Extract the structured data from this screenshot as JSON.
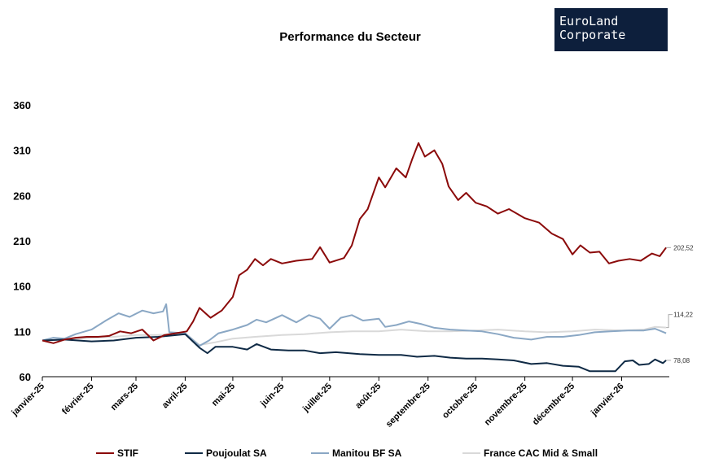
{
  "logo": {
    "line1": "EuroLand",
    "line2": "Corporate",
    "bg": "#0d1f3c"
  },
  "chart_data": {
    "type": "line",
    "title": "Performance du Secteur",
    "ylim": [
      60,
      360
    ],
    "yticks": [
      60,
      110,
      160,
      210,
      260,
      310,
      360
    ],
    "xlim": [
      "2025-01-01",
      "2026-01-31"
    ],
    "xticks": [
      {
        "date": "2025-01-01",
        "label": "janvier-25"
      },
      {
        "date": "2025-02-01",
        "label": "février-25"
      },
      {
        "date": "2025-03-01",
        "label": "mars-25"
      },
      {
        "date": "2025-04-01",
        "label": "avril-25"
      },
      {
        "date": "2025-05-01",
        "label": "mai-25"
      },
      {
        "date": "2025-06-01",
        "label": "juin-25"
      },
      {
        "date": "2025-07-01",
        "label": "juillet-25"
      },
      {
        "date": "2025-08-01",
        "label": "août-25"
      },
      {
        "date": "2025-09-01",
        "label": "septembre-25"
      },
      {
        "date": "2025-10-01",
        "label": "octobre-25"
      },
      {
        "date": "2025-11-01",
        "label": "novembre-25"
      },
      {
        "date": "2025-12-01",
        "label": "décembre-25"
      },
      {
        "date": "2026-01-01",
        "label": "janvier-26"
      }
    ],
    "legend_position": "bottom",
    "series": [
      {
        "name": "STIF",
        "color": "#8b0a0a",
        "end_label": "202,52",
        "points": [
          [
            "2025-01-01",
            100
          ],
          [
            "2025-01-08",
            97
          ],
          [
            "2025-01-15",
            101
          ],
          [
            "2025-01-22",
            103
          ],
          [
            "2025-01-29",
            104
          ],
          [
            "2025-02-05",
            104
          ],
          [
            "2025-02-12",
            105
          ],
          [
            "2025-02-19",
            110
          ],
          [
            "2025-02-26",
            108
          ],
          [
            "2025-03-05",
            112
          ],
          [
            "2025-03-12",
            100
          ],
          [
            "2025-03-19",
            106
          ],
          [
            "2025-03-26",
            108
          ],
          [
            "2025-04-02",
            110
          ],
          [
            "2025-04-06",
            121
          ],
          [
            "2025-04-10",
            136
          ],
          [
            "2025-04-17",
            125
          ],
          [
            "2025-04-24",
            133
          ],
          [
            "2025-05-01",
            148
          ],
          [
            "2025-05-05",
            172
          ],
          [
            "2025-05-10",
            178
          ],
          [
            "2025-05-15",
            190
          ],
          [
            "2025-05-20",
            183
          ],
          [
            "2025-05-25",
            190
          ],
          [
            "2025-06-01",
            185
          ],
          [
            "2025-06-10",
            188
          ],
          [
            "2025-06-20",
            190
          ],
          [
            "2025-06-25",
            203
          ],
          [
            "2025-07-01",
            186
          ],
          [
            "2025-07-10",
            191
          ],
          [
            "2025-07-15",
            205
          ],
          [
            "2025-07-20",
            234
          ],
          [
            "2025-07-25",
            245
          ],
          [
            "2025-08-01",
            280
          ],
          [
            "2025-08-05",
            269
          ],
          [
            "2025-08-12",
            290
          ],
          [
            "2025-08-18",
            280
          ],
          [
            "2025-08-22",
            300
          ],
          [
            "2025-08-26",
            318
          ],
          [
            "2025-08-30",
            303
          ],
          [
            "2025-09-05",
            310
          ],
          [
            "2025-09-10",
            295
          ],
          [
            "2025-09-14",
            270
          ],
          [
            "2025-09-20",
            255
          ],
          [
            "2025-09-25",
            263
          ],
          [
            "2025-10-01",
            252
          ],
          [
            "2025-10-08",
            248
          ],
          [
            "2025-10-15",
            240
          ],
          [
            "2025-10-22",
            245
          ],
          [
            "2025-11-01",
            235
          ],
          [
            "2025-11-10",
            230
          ],
          [
            "2025-11-18",
            218
          ],
          [
            "2025-11-25",
            212
          ],
          [
            "2025-12-01",
            195
          ],
          [
            "2025-12-06",
            205
          ],
          [
            "2025-12-12",
            197
          ],
          [
            "2025-12-18",
            198
          ],
          [
            "2025-12-24",
            185
          ],
          [
            "2025-12-30",
            188
          ],
          [
            "2026-01-06",
            190
          ],
          [
            "2026-01-13",
            188
          ],
          [
            "2026-01-20",
            196
          ],
          [
            "2026-01-25",
            193
          ],
          [
            "2026-01-29",
            202.52
          ]
        ]
      },
      {
        "name": "Poujoulat SA",
        "color": "#0f2a45",
        "end_label": "78,08",
        "points": [
          [
            "2025-01-01",
            100
          ],
          [
            "2025-01-15",
            101
          ],
          [
            "2025-02-01",
            99
          ],
          [
            "2025-02-15",
            100
          ],
          [
            "2025-03-01",
            103
          ],
          [
            "2025-03-15",
            104
          ],
          [
            "2025-04-01",
            107
          ],
          [
            "2025-04-10",
            92
          ],
          [
            "2025-04-15",
            86
          ],
          [
            "2025-04-20",
            93
          ],
          [
            "2025-05-01",
            93
          ],
          [
            "2025-05-10",
            90
          ],
          [
            "2025-05-16",
            96
          ],
          [
            "2025-05-25",
            90
          ],
          [
            "2025-06-05",
            89
          ],
          [
            "2025-06-15",
            89
          ],
          [
            "2025-06-25",
            86
          ],
          [
            "2025-07-05",
            87
          ],
          [
            "2025-07-20",
            85
          ],
          [
            "2025-08-01",
            84
          ],
          [
            "2025-08-15",
            84
          ],
          [
            "2025-08-25",
            82
          ],
          [
            "2025-09-05",
            83
          ],
          [
            "2025-09-15",
            81
          ],
          [
            "2025-09-25",
            80
          ],
          [
            "2025-10-05",
            80
          ],
          [
            "2025-10-15",
            79
          ],
          [
            "2025-10-25",
            78
          ],
          [
            "2025-11-05",
            74
          ],
          [
            "2025-11-15",
            75
          ],
          [
            "2025-11-25",
            72
          ],
          [
            "2025-12-05",
            71
          ],
          [
            "2025-12-12",
            66
          ],
          [
            "2025-12-20",
            66
          ],
          [
            "2025-12-28",
            66
          ],
          [
            "2026-01-03",
            77
          ],
          [
            "2026-01-08",
            78
          ],
          [
            "2026-01-12",
            73
          ],
          [
            "2026-01-18",
            74
          ],
          [
            "2026-01-22",
            79
          ],
          [
            "2026-01-27",
            75
          ],
          [
            "2026-01-29",
            78.08
          ]
        ]
      },
      {
        "name": "Manitou BF SA",
        "color": "#8aa7c4",
        "end_label": "",
        "points": [
          [
            "2025-01-01",
            100
          ],
          [
            "2025-01-08",
            103
          ],
          [
            "2025-01-15",
            102
          ],
          [
            "2025-01-22",
            107
          ],
          [
            "2025-02-01",
            112
          ],
          [
            "2025-02-10",
            122
          ],
          [
            "2025-02-18",
            130
          ],
          [
            "2025-02-25",
            126
          ],
          [
            "2025-03-05",
            133
          ],
          [
            "2025-03-12",
            130
          ],
          [
            "2025-03-18",
            132
          ],
          [
            "2025-03-20",
            140
          ],
          [
            "2025-03-22",
            109
          ],
          [
            "2025-04-01",
            108
          ],
          [
            "2025-04-10",
            94
          ],
          [
            "2025-04-16",
            100
          ],
          [
            "2025-04-22",
            108
          ],
          [
            "2025-05-01",
            112
          ],
          [
            "2025-05-10",
            117
          ],
          [
            "2025-05-16",
            123
          ],
          [
            "2025-05-22",
            120
          ],
          [
            "2025-06-01",
            128
          ],
          [
            "2025-06-10",
            120
          ],
          [
            "2025-06-18",
            128
          ],
          [
            "2025-06-25",
            124
          ],
          [
            "2025-07-01",
            113
          ],
          [
            "2025-07-08",
            125
          ],
          [
            "2025-07-15",
            128
          ],
          [
            "2025-07-22",
            122
          ],
          [
            "2025-08-01",
            124
          ],
          [
            "2025-08-05",
            115
          ],
          [
            "2025-08-12",
            117
          ],
          [
            "2025-08-20",
            121
          ],
          [
            "2025-08-28",
            118
          ],
          [
            "2025-09-05",
            114
          ],
          [
            "2025-09-15",
            112
          ],
          [
            "2025-09-25",
            111
          ],
          [
            "2025-10-05",
            110
          ],
          [
            "2025-10-15",
            107
          ],
          [
            "2025-10-25",
            103
          ],
          [
            "2025-11-05",
            101
          ],
          [
            "2025-11-15",
            104
          ],
          [
            "2025-11-25",
            104
          ],
          [
            "2025-12-05",
            106
          ],
          [
            "2025-12-15",
            109
          ],
          [
            "2025-12-25",
            110
          ],
          [
            "2026-01-05",
            111
          ],
          [
            "2026-01-15",
            111
          ],
          [
            "2026-01-22",
            113
          ],
          [
            "2026-01-29",
            108
          ]
        ]
      },
      {
        "name": "France CAC Mid & Small",
        "color": "#d9d9d9",
        "end_label": "114,22",
        "points": [
          [
            "2025-01-01",
            100
          ],
          [
            "2025-01-15",
            101
          ],
          [
            "2025-02-01",
            103
          ],
          [
            "2025-02-15",
            104
          ],
          [
            "2025-03-01",
            106
          ],
          [
            "2025-03-15",
            106
          ],
          [
            "2025-04-01",
            108
          ],
          [
            "2025-04-10",
            95
          ],
          [
            "2025-04-20",
            98
          ],
          [
            "2025-05-01",
            102
          ],
          [
            "2025-05-15",
            104
          ],
          [
            "2025-06-01",
            106
          ],
          [
            "2025-06-15",
            107
          ],
          [
            "2025-07-01",
            109
          ],
          [
            "2025-07-15",
            110
          ],
          [
            "2025-08-01",
            110
          ],
          [
            "2025-08-15",
            112
          ],
          [
            "2025-09-01",
            110
          ],
          [
            "2025-09-15",
            110
          ],
          [
            "2025-10-01",
            111
          ],
          [
            "2025-10-15",
            112
          ],
          [
            "2025-11-01",
            110
          ],
          [
            "2025-11-15",
            109
          ],
          [
            "2025-12-01",
            110
          ],
          [
            "2025-12-15",
            112
          ],
          [
            "2026-01-01",
            111
          ],
          [
            "2026-01-15",
            112
          ],
          [
            "2026-01-22",
            115
          ],
          [
            "2026-01-29",
            114.22
          ]
        ]
      }
    ]
  }
}
